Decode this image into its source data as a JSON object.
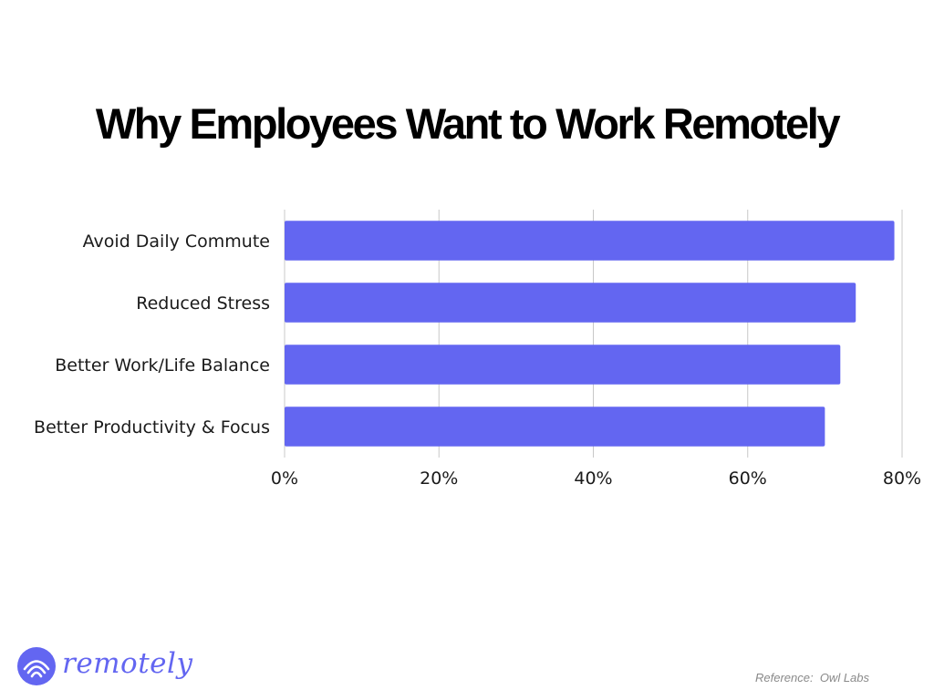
{
  "chart_data": {
    "type": "bar",
    "orientation": "horizontal",
    "title": "Why Employees Want to Work Remotely",
    "categories": [
      "Avoid Daily Commute",
      "Reduced Stress",
      "Better Work/Life Balance",
      "Better Productivity & Focus"
    ],
    "values": [
      79,
      74,
      72,
      70
    ],
    "value_unit": "%",
    "xlim": [
      0,
      80
    ],
    "x_ticks": [
      "0%",
      "20%",
      "40%",
      "60%",
      "80%"
    ],
    "tick_values": [
      0,
      20,
      40,
      60,
      80
    ],
    "xlabel": "",
    "ylabel": "",
    "grid": "vertical",
    "legend": "none",
    "bar_color": "#6366f1",
    "grid_color": "#c8c8c8"
  },
  "brand": {
    "name": "remotely",
    "color": "#6366f1",
    "icon": "remotely-logo-icon"
  },
  "footer": {
    "reference": "Reference:  Owl Labs"
  }
}
